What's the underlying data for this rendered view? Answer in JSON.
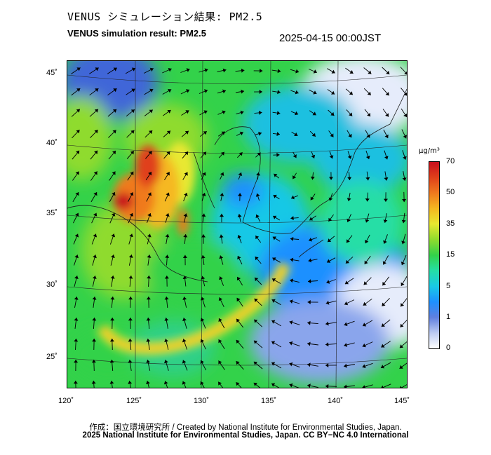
{
  "header": {
    "title_jp": "VENUS シミュレーション結果: PM2.5",
    "title_en": "VENUS simulation result: PM2.5",
    "timestamp": "2025-04-15 00:00JST"
  },
  "map": {
    "lat_labels": [
      "45˚",
      "40˚",
      "35˚",
      "30˚",
      "25˚"
    ],
    "lon_labels": [
      "120˚",
      "125˚",
      "130˚",
      "135˚",
      "140˚",
      "145˚"
    ]
  },
  "colorbar": {
    "unit": "μg/m³",
    "ticks": [
      "70",
      "50",
      "35",
      "15",
      "5",
      "1",
      "0"
    ],
    "colors": [
      "#ffffff",
      "#bccbf2",
      "#5f7fe0",
      "#1e90ff",
      "#19c8e6",
      "#25dea6",
      "#33d24a",
      "#8fdb2e",
      "#e8e830",
      "#f5b820",
      "#f07a1e",
      "#e0401a",
      "#c8101e"
    ]
  },
  "footer": {
    "credit": "作成：国立環境研究所 / Created by National Institute for Environmental Studies, Japan.",
    "copyright": "2025 National Institute for Environmental Studies, Japan. CC BY−NC 4.0 International"
  }
}
